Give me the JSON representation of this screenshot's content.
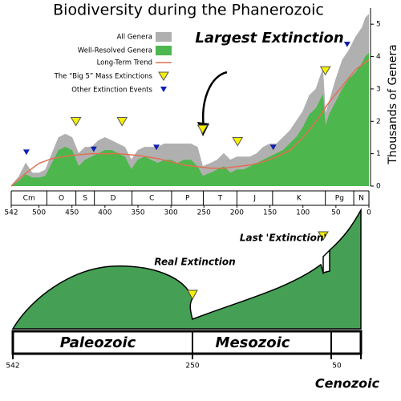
{
  "chart_data": {
    "type": "area",
    "title": "Biodiversity during the Phanerozoic",
    "y_label": "Thousands of Genera",
    "annotation": "Largest Extinction",
    "xlim": [
      542,
      0
    ],
    "xticks": [
      542,
      500,
      450,
      400,
      350,
      300,
      250,
      200,
      150,
      100,
      50,
      0
    ],
    "ylim": [
      0,
      5.5
    ],
    "yticks": [
      0,
      1,
      2,
      3,
      4,
      5
    ],
    "x": [
      542,
      530,
      520,
      510,
      500,
      490,
      480,
      470,
      460,
      450,
      440,
      430,
      420,
      410,
      400,
      390,
      380,
      370,
      360,
      350,
      340,
      330,
      320,
      310,
      300,
      290,
      280,
      270,
      260,
      252,
      240,
      230,
      220,
      210,
      200,
      190,
      180,
      170,
      160,
      150,
      140,
      130,
      120,
      110,
      100,
      90,
      80,
      70,
      66,
      60,
      50,
      40,
      30,
      20,
      10,
      5,
      0
    ],
    "series": [
      {
        "name": "All Genera",
        "color": "#b0b0b0",
        "values": [
          0,
          0.3,
          0.7,
          0.4,
          0.4,
          0.5,
          1.0,
          1.5,
          1.6,
          1.5,
          1.0,
          1.2,
          1.2,
          1.4,
          1.5,
          1.4,
          1.3,
          1.2,
          0.8,
          1.1,
          1.2,
          1.2,
          1.2,
          1.3,
          1.3,
          1.3,
          1.3,
          1.3,
          1.2,
          0.6,
          0.7,
          0.8,
          1.0,
          0.8,
          0.9,
          0.9,
          0.9,
          1.0,
          1.2,
          1.3,
          1.3,
          1.5,
          1.7,
          2.0,
          2.3,
          2.8,
          3.0,
          3.6,
          2.2,
          2.6,
          3.3,
          3.9,
          4.2,
          4.6,
          4.9,
          5.2,
          5.3
        ]
      },
      {
        "name": "Well-Resolved Genera",
        "color": "#4db74d",
        "values": [
          0,
          0.15,
          0.35,
          0.25,
          0.25,
          0.3,
          0.7,
          1.1,
          1.2,
          1.1,
          0.6,
          0.8,
          0.9,
          1.0,
          1.1,
          1.1,
          1.0,
          0.9,
          0.5,
          0.8,
          0.9,
          0.8,
          0.7,
          0.8,
          0.8,
          0.7,
          0.8,
          0.8,
          0.6,
          0.3,
          0.4,
          0.5,
          0.6,
          0.4,
          0.5,
          0.5,
          0.6,
          0.7,
          0.8,
          0.9,
          1.0,
          1.1,
          1.3,
          1.5,
          1.8,
          2.2,
          2.4,
          2.8,
          1.8,
          2.2,
          2.6,
          3.0,
          3.3,
          3.5,
          3.8,
          4.0,
          4.1
        ]
      }
    ],
    "trend": {
      "name": "Long-Term Trend",
      "color": "#e07050",
      "x": [
        542,
        520,
        500,
        480,
        450,
        420,
        400,
        380,
        350,
        320,
        300,
        280,
        260,
        240,
        220,
        200,
        180,
        160,
        140,
        120,
        100,
        80,
        60,
        40,
        20,
        0
      ],
      "values": [
        0,
        0.4,
        0.7,
        0.85,
        0.95,
        1.0,
        1.0,
        1.0,
        0.95,
        0.85,
        0.75,
        0.65,
        0.6,
        0.55,
        0.55,
        0.6,
        0.65,
        0.75,
        0.9,
        1.1,
        1.5,
        2.0,
        2.6,
        3.1,
        3.6,
        3.9
      ]
    },
    "events": [
      {
        "name": "The “Big 5” Mass Extinctions",
        "color": "#f5f000",
        "x": [
          444,
          374,
          252,
          199,
          66
        ],
        "values": [
          2.0,
          2.0,
          1.76,
          1.38,
          3.57
        ]
      },
      {
        "name": "Other Extinction Events",
        "color": "#1020b0",
        "x": [
          519,
          417,
          322,
          145,
          33
        ],
        "values": [
          1.05,
          1.14,
          1.2,
          1.2,
          4.38
        ]
      }
    ],
    "periods": {
      "names": [
        "Cm",
        "O",
        "S",
        "D",
        "C",
        "P",
        "T",
        "J",
        "K",
        "Pg",
        "N"
      ],
      "bounds": [
        542,
        488,
        444,
        416,
        359,
        299,
        251,
        200,
        146,
        66,
        23,
        0
      ]
    }
  },
  "schematic": {
    "annotations": [
      "Real Extinction",
      "Last 'Extinction'"
    ],
    "eras": [
      "Paleozoic",
      "Mesozoic",
      "Cenozoic"
    ],
    "ticks": [
      "542",
      "250",
      "50"
    ]
  }
}
